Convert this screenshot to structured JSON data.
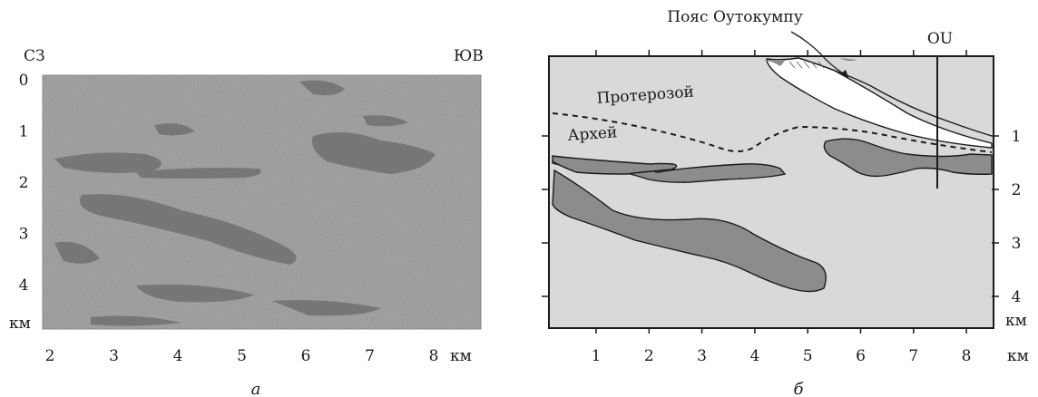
{
  "panel_a": {
    "corner_left": "СЗ",
    "corner_right": "ЮВ",
    "y_ticks": [
      "0",
      "1",
      "2",
      "3",
      "4"
    ],
    "y_unit": "км",
    "x_ticks": [
      "2",
      "3",
      "4",
      "5",
      "6",
      "7",
      "8"
    ],
    "x_unit": "км",
    "caption": "а"
  },
  "panel_b": {
    "belt_label": "Пояс Оутокумпу",
    "borehole_label": "OU",
    "proterozoic_label": "Протерозой",
    "archean_label": "Архей",
    "y_ticks": [
      "1",
      "2",
      "3",
      "4"
    ],
    "y_unit": "км",
    "x_ticks": [
      "1",
      "2",
      "3",
      "4",
      "5",
      "6",
      "7",
      "8"
    ],
    "x_unit": "км",
    "caption": "б"
  },
  "colors": {
    "section_fill": "#d8d8d8",
    "body_fill": "#8a8a8a",
    "seismic_base": "#a8a8a8",
    "seismic_dark": "#6e6e6e"
  }
}
